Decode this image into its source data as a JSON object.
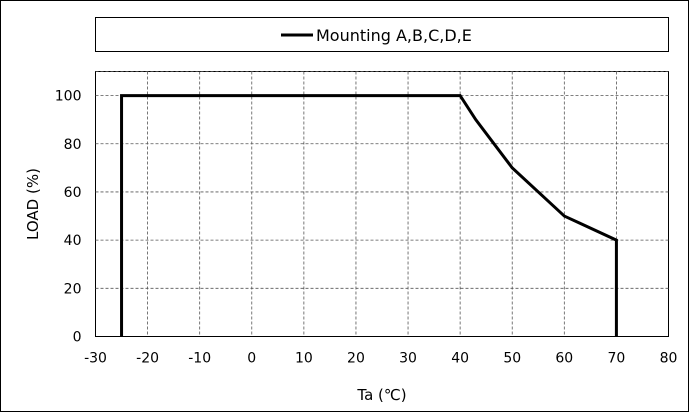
{
  "chart_data": {
    "type": "line",
    "xlabel": "Ta (℃)",
    "ylabel": "LOAD (%)",
    "xlim": [
      -30,
      80
    ],
    "ylim": [
      0,
      110
    ],
    "xticks": [
      -30,
      -20,
      -10,
      0,
      10,
      20,
      30,
      40,
      50,
      60,
      70,
      80
    ],
    "yticks": [
      0,
      20,
      40,
      60,
      80,
      100
    ],
    "grid": true,
    "legend_placement": "top",
    "series": [
      {
        "name": "Mounting A,B,C,D,E",
        "color": "#000000",
        "x": [
          -25,
          -25,
          40,
          43,
          50,
          60,
          63,
          70,
          70
        ],
        "y": [
          0,
          100,
          100,
          90,
          70,
          50,
          47,
          40,
          0
        ]
      }
    ]
  }
}
